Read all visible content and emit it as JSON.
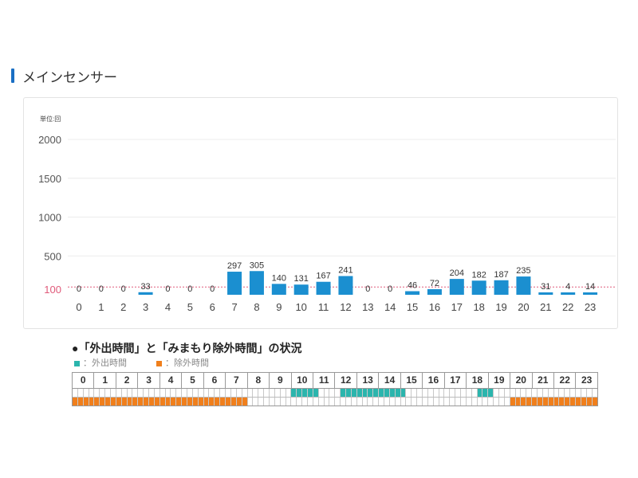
{
  "section": {
    "title": "メインセンサー"
  },
  "chart_data": {
    "type": "bar",
    "unit_label": "単位:回",
    "categories": [
      "0",
      "1",
      "2",
      "3",
      "4",
      "5",
      "6",
      "7",
      "8",
      "9",
      "10",
      "11",
      "12",
      "13",
      "14",
      "15",
      "16",
      "17",
      "18",
      "19",
      "20",
      "21",
      "22",
      "23"
    ],
    "values": [
      0,
      0,
      0,
      33,
      0,
      0,
      0,
      297,
      305,
      140,
      131,
      167,
      241,
      0,
      0,
      46,
      72,
      204,
      182,
      187,
      235,
      31,
      4,
      14
    ],
    "yticks": [
      2000,
      1500,
      1000,
      500
    ],
    "reference_line": {
      "value": 100,
      "label": "100",
      "color": "#e05a7a"
    },
    "ylim": [
      0,
      2000
    ],
    "grid": true,
    "bar_color": "#1b8fd0"
  },
  "status": {
    "title": "●「外出時間」と「みまもり除外時間」の状況",
    "legend": [
      {
        "label": "：外出時間",
        "color": "#2bb5ad"
      },
      {
        "label": "：除外時間",
        "color": "#f07f1c"
      }
    ],
    "hours": [
      "0",
      "1",
      "2",
      "3",
      "4",
      "5",
      "6",
      "7",
      "8",
      "9",
      "10",
      "11",
      "12",
      "13",
      "14",
      "15",
      "16",
      "17",
      "18",
      "19",
      "20",
      "21",
      "22",
      "23"
    ],
    "segments_per_hour": 4,
    "outing": [
      [
        10,
        0.0,
        1.25
      ],
      [
        12.25,
        15.25
      ],
      [
        18.5,
        19.25
      ]
    ],
    "excluded": [
      [
        0,
        8
      ],
      [
        20,
        24
      ]
    ]
  }
}
